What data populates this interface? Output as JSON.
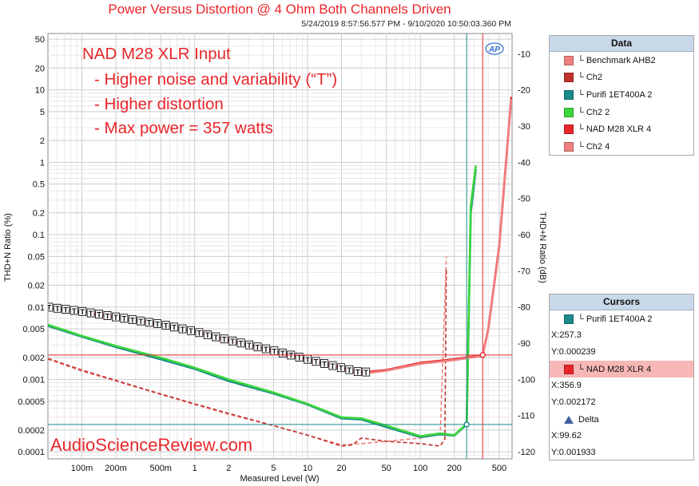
{
  "chart_data": {
    "type": "line",
    "title": "Power Versus Distortion @ 4 Ohm Both Channels Driven",
    "subtitle": "5/24/2019 8:57:56.577 PM - 9/10/2020 10:50:03.360 PM",
    "xlabel": "Measured Level (W)",
    "ylabel_left": "THD+N Ratio (%)",
    "ylabel_right": "THD+N Ratio (dB)",
    "x_scale": "log",
    "y_scale": "log",
    "xlim": [
      0.05,
      650
    ],
    "ylim": [
      8e-05,
      60
    ],
    "y_right_lim": [
      -122,
      -4.4
    ],
    "x_ticks": [
      "100m",
      "200m",
      "500m",
      "1",
      "2",
      "5",
      "10",
      "20",
      "50",
      "100",
      "200",
      "500"
    ],
    "x_tick_values": [
      0.1,
      0.2,
      0.5,
      1,
      2,
      5,
      10,
      20,
      50,
      100,
      200,
      500
    ],
    "y_ticks": [
      "50",
      "20",
      "10",
      "5",
      "2",
      "1",
      "0.5",
      "0.2",
      "0.1",
      "0.05",
      "0.02",
      "0.01",
      "0.005",
      "0.002",
      "0.001",
      "0.0005",
      "0.0002",
      "0.0001"
    ],
    "y_tick_values": [
      50,
      20,
      10,
      5,
      2,
      1,
      0.5,
      0.2,
      0.1,
      0.05,
      0.02,
      0.01,
      0.005,
      0.002,
      0.001,
      0.0005,
      0.0002,
      0.0001
    ],
    "y_right_ticks": [
      "-10",
      "-20",
      "-30",
      "-40",
      "-50",
      "-60",
      "-70",
      "-80",
      "-90",
      "-100",
      "-110",
      "-120"
    ],
    "y_right_tick_values": [
      -10,
      -20,
      -30,
      -40,
      -50,
      -60,
      -70,
      -80,
      -90,
      -100,
      -110,
      -120
    ],
    "grid": true,
    "series": [
      {
        "name": "Benchmark AHB2",
        "color": "#f08080",
        "dash": true,
        "x": [
          0.05,
          0.1,
          0.2,
          0.5,
          1,
          2,
          5,
          10,
          20,
          30,
          50,
          100,
          150,
          170
        ],
        "y": [
          0.0019,
          0.0013,
          0.00095,
          0.00062,
          0.00045,
          0.00033,
          0.00023,
          0.00017,
          0.000125,
          0.00013,
          0.00014,
          0.000155,
          0.000175,
          0.05
        ]
      },
      {
        "name": "Ch2",
        "color": "#c0302a",
        "dash": true,
        "x": [
          0.05,
          0.1,
          0.2,
          0.5,
          1,
          2,
          5,
          10,
          20,
          25,
          30,
          50,
          100,
          150,
          165,
          170
        ],
        "y": [
          0.00195,
          0.00135,
          0.00097,
          0.00063,
          0.00046,
          0.00034,
          0.00023,
          0.00017,
          0.00012,
          0.000125,
          0.000155,
          0.00014,
          0.00013,
          0.00012,
          0.00015,
          0.035
        ]
      },
      {
        "name": "Purifi 1ET400A 2",
        "color": "#1a8a8a",
        "dash": false,
        "x": [
          0.05,
          0.1,
          0.2,
          0.5,
          1,
          2,
          5,
          10,
          20,
          30,
          50,
          100,
          150,
          200,
          257.3,
          280,
          310
        ],
        "y": [
          0.0055,
          0.0039,
          0.0028,
          0.0019,
          0.0014,
          0.00095,
          0.00064,
          0.00045,
          0.00029,
          0.00028,
          0.00022,
          0.00016,
          0.000175,
          0.000168,
          0.000239,
          0.2,
          0.8
        ]
      },
      {
        "name": "Ch2 2",
        "color": "#3bd63b",
        "dash": false,
        "x": [
          0.05,
          0.1,
          0.2,
          0.5,
          1,
          2,
          5,
          10,
          20,
          30,
          50,
          100,
          150,
          200,
          257.3,
          280,
          310
        ],
        "y": [
          0.0057,
          0.004,
          0.0029,
          0.002,
          0.00145,
          0.001,
          0.00066,
          0.00046,
          0.0003,
          0.00029,
          0.00023,
          0.000165,
          0.00018,
          0.00017,
          0.000245,
          0.25,
          0.9
        ]
      },
      {
        "name": "NAD M28 XLR 4",
        "color": "#e8262a",
        "dash": false,
        "x": [
          0.05,
          0.1,
          0.2,
          0.5,
          1,
          2,
          5,
          10,
          20,
          30,
          50,
          100,
          200,
          356.9,
          400,
          500,
          580,
          640
        ],
        "y": [
          0.01,
          0.0087,
          0.0073,
          0.0058,
          0.0046,
          0.0035,
          0.0025,
          0.0019,
          0.00145,
          0.00125,
          0.00135,
          0.0017,
          0.0019,
          0.002172,
          0.005,
          0.07,
          1.2,
          8
        ]
      },
      {
        "name": "Ch2 4",
        "color": "#f08080",
        "dash": false,
        "x": [
          0.05,
          0.1,
          0.2,
          0.5,
          1,
          2,
          5,
          10,
          20,
          30,
          50,
          100,
          200,
          356.9,
          400,
          500,
          580,
          640
        ],
        "y": [
          0.0098,
          0.0085,
          0.0071,
          0.0057,
          0.0045,
          0.0034,
          0.0024,
          0.0018,
          0.0014,
          0.0012,
          0.00132,
          0.00165,
          0.00185,
          0.00212,
          0.0048,
          0.065,
          1.1,
          7.5
        ]
      }
    ],
    "t_marker": {
      "label": "T",
      "series": "NAD M28 XLR 4",
      "x_max": 33
    },
    "cursor_lines": [
      {
        "color": "#1a8a8a",
        "x": 257.3,
        "y": 0.000239
      },
      {
        "color": "#e8262a",
        "x": 356.9,
        "y": 0.002172
      }
    ],
    "annotations": [
      "NAD M28 XLR Input",
      "- Higher noise and variability (“T”)",
      "- Higher distortion",
      "- Max power = 357 watts"
    ],
    "watermark": "AudioScienceReview.com",
    "logo": "AP"
  },
  "legend": {
    "title": "Data",
    "items": [
      {
        "label": "└ Benchmark AHB2",
        "color": "#f08080"
      },
      {
        "label": "└ Ch2",
        "color": "#c0302a"
      },
      {
        "label": "└ Purifi 1ET400A 2",
        "color": "#1a8a8a"
      },
      {
        "label": "└ Ch2 2",
        "color": "#3bd63b"
      },
      {
        "label": "└ NAD M28 XLR 4",
        "color": "#e8262a"
      },
      {
        "label": "└ Ch2 4",
        "color": "#f08080"
      }
    ]
  },
  "cursors": {
    "title": "Cursors",
    "c1_label": "└ Purifi 1ET400A 2",
    "c1_color": "#1a8a8a",
    "c1_x": "X:257.3",
    "c1_y": "Y:0.000239",
    "c2_label": "└ NAD M28 XLR 4",
    "c2_color": "#e8262a",
    "c2_x": "X:356.9",
    "c2_y": "Y:0.002172",
    "delta_label": "Delta",
    "delta_x": "X:99.62",
    "delta_y": "Y:0.001933"
  }
}
